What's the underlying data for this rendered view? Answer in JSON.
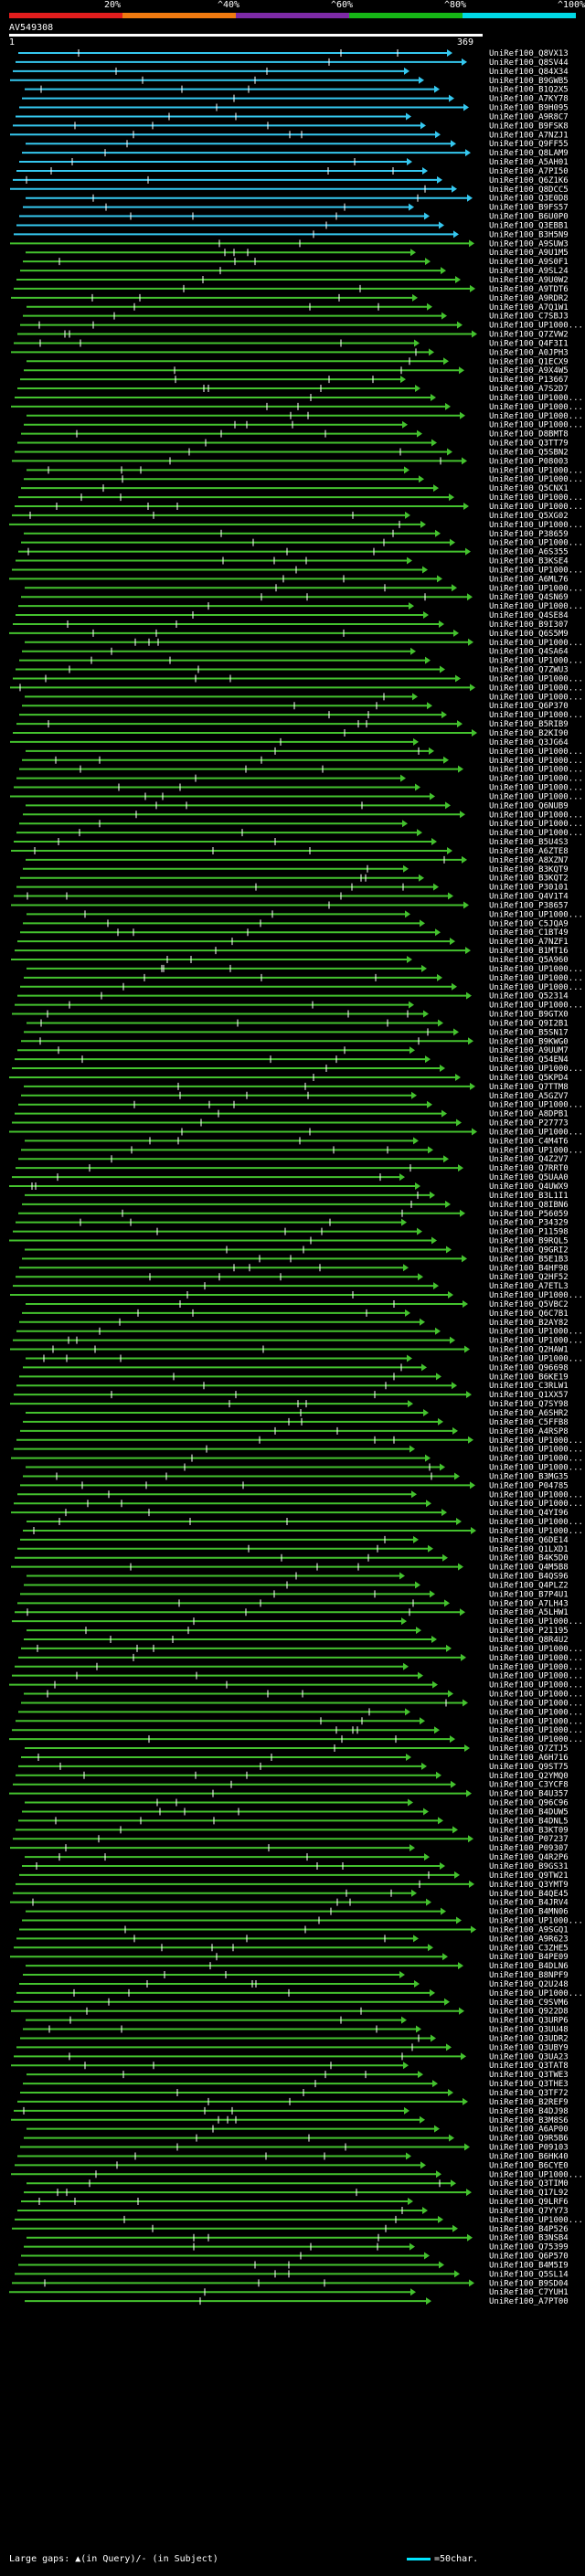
{
  "query": {
    "name": "AV549308",
    "start": "1",
    "end": "369"
  },
  "scale": [
    {
      "label": "20%",
      "color": "#e11d1d"
    },
    {
      "label": "^40%",
      "color": "#f07a10"
    },
    {
      "label": "^60%",
      "color": "#7d2aa6"
    },
    {
      "label": "^80%",
      "color": "#16b616"
    },
    {
      "label": "^100%",
      "color": "#00d9e6"
    }
  ],
  "hits": [
    "UniRef100_Q8VX13",
    "UniRef100_Q8SV44",
    "UniRef100_Q84X34",
    "UniRef100_B9GWB5",
    "UniRef100_B1Q2X5",
    "UniRef100_A7KY78",
    "UniRef100_B9H095",
    "UniRef100_A9R8C7",
    "UniRef100_B9FSK8",
    "UniRef100_A7NZJ1",
    "UniRef100_Q9FF55",
    "UniRef100_Q8LAM9",
    "UniRef100_A5AH01",
    "UniRef100_A7PI50",
    "UniRef100_Q6Z1K6",
    "UniRef100_Q8DCC5",
    "UniRef100_Q3E0D8",
    "UniRef100_B9FS57",
    "UniRef100_B6U0P0",
    "UniRef100_Q3EBB1",
    "UniRef100_B3H5N9",
    "UniRef100_A9SUW3",
    "UniRef100_A9U1M5",
    "UniRef100_A9S0F1",
    "UniRef100_A9SL24",
    "UniRef100_A9U0W2",
    "UniRef100_A9TDT6",
    "UniRef100_A9RDR2",
    "UniRef100_A7Q1W1",
    "UniRef100_C7SBJ3",
    "UniRef100_UP1000...",
    "UniRef100_Q7ZVW2",
    "UniRef100_Q4F3I1",
    "UniRef100_A0JPH3",
    "UniRef100_Q1ECX9",
    "UniRef100_A9X4W5",
    "UniRef100_P13667",
    "UniRef100_A7S2D7",
    "UniRef100_UP1000...",
    "UniRef100_UP1000...",
    "UniRef100_UP1000...",
    "UniRef100_UP1000...",
    "UniRef100_D8BMT8",
    "UniRef100_Q3TT79",
    "UniRef100_Q5SBN2",
    "UniRef100_P08003",
    "UniRef100_UP1000...",
    "UniRef100_UP1000...",
    "UniRef100_Q5CNX1",
    "UniRef100_UP1000...",
    "UniRef100_UP1000...",
    "UniRef100_Q5XG02",
    "UniRef100_UP1000...",
    "UniRef100_P38659",
    "UniRef100_UP1000...",
    "UniRef100_A6S355",
    "UniRef100_B3KSE4",
    "UniRef100_UP1000...",
    "UniRef100_A6ML76",
    "UniRef100_UP1000...",
    "UniRef100_Q4SN69",
    "UniRef100_UP1000...",
    "UniRef100_Q4SE84",
    "UniRef100_B9I307",
    "UniRef100_Q6S5M9",
    "UniRef100_UP1000...",
    "UniRef100_Q4SA64",
    "UniRef100_UP1000...",
    "UniRef100_Q7ZWU3",
    "UniRef100_UP1000...",
    "UniRef100_UP1000...",
    "UniRef100_UP1000...",
    "UniRef100_Q6P370",
    "UniRef100_UP1000...",
    "UniRef100_B5RIB9",
    "UniRef100_B2KI90",
    "UniRef100_Q3JG64",
    "UniRef100_UP1000...",
    "UniRef100_UP1000...",
    "UniRef100_UP1000...",
    "UniRef100_UP1000...",
    "UniRef100_UP1000...",
    "UniRef100_UP1000...",
    "UniRef100_Q6NUB9",
    "UniRef100_UP1000...",
    "UniRef100_UP1000...",
    "UniRef100_UP1000...",
    "UniRef100_B5U4S3",
    "UniRef100_A6ZTE8",
    "UniRef100_A8XZN7",
    "UniRef100_B3KQT9",
    "UniRef100_B3KQT2",
    "UniRef100_P30101",
    "UniRef100_Q4V1T4",
    "UniRef100_P38657",
    "UniRef100_UP1000...",
    "UniRef100_C5JQA9",
    "UniRef100_C1BT49",
    "UniRef100_A7NZF1",
    "UniRef100_B1MT16",
    "UniRef100_Q5A960",
    "UniRef100_UP1000...",
    "UniRef100_UP1000...",
    "UniRef100_UP1000...",
    "UniRef100_Q52314",
    "UniRef100_UP1000...",
    "UniRef100_B9GTX0",
    "UniRef100_Q9I2B1",
    "UniRef100_B5SN17",
    "UniRef100_B9KWG0",
    "UniRef100_A9UUM7",
    "UniRef100_Q54EN4",
    "UniRef100_UP1000...",
    "UniRef100_Q5KPD4",
    "UniRef100_Q7TTM8",
    "UniRef100_A5GZV7",
    "UniRef100_UP1000...",
    "UniRef100_A8DPB1",
    "UniRef100_P27773",
    "UniRef100_UP1000...",
    "UniRef100_C4M4T6",
    "UniRef100_UP1000...",
    "UniRef100_Q4Z2V7",
    "UniRef100_Q7RRT0",
    "UniRef100_Q5UAA0",
    "UniRef100_Q4UWX9",
    "UniRef100_B3L1I1",
    "UniRef100_Q8IBN6",
    "UniRef100_P56059",
    "UniRef100_P34329",
    "UniRef100_P11598",
    "UniRef100_B9RQL5",
    "UniRef100_Q9GRI2",
    "UniRef100_B5E1B3",
    "UniRef100_B4HF98",
    "UniRef100_Q2HF52",
    "UniRef100_A7ETL3",
    "UniRef100_UP1000...",
    "UniRef100_Q5VBC2",
    "UniRef100_Q6C7B1",
    "UniRef100_B2AY82",
    "UniRef100_UP1000...",
    "UniRef100_UP1000...",
    "UniRef100_Q2HAW1",
    "UniRef100_UP1000...",
    "UniRef100_Q96698",
    "UniRef100_B6KE19",
    "UniRef100_C3RLW1",
    "UniRef100_Q1XX57",
    "UniRef100_Q7SY98",
    "UniRef100_A6SHR2",
    "UniRef100_C5FFB8",
    "UniRef100_A4RSP8",
    "UniRef100_UP1000...",
    "UniRef100_UP1000...",
    "UniRef100_UP1000...",
    "UniRef100_UP1000...",
    "UniRef100_B3MG35",
    "UniRef100_P04785",
    "UniRef100_UP1000...",
    "UniRef100_UP1000...",
    "UniRef100_Q4YI96",
    "UniRef100_UP1000...",
    "UniRef100_UP1000...",
    "UniRef100_Q6DE14",
    "UniRef100_Q1LXD1",
    "UniRef100_B4K5D0",
    "UniRef100_Q4M5B8",
    "UniRef100_B4QS96",
    "UniRef100_Q4PLZ2",
    "UniRef100_B7P4U1",
    "UniRef100_A7LH43",
    "UniRef100_A5LHW1",
    "UniRef100_UP1000...",
    "UniRef100_P21195",
    "UniRef100_Q8R4U2",
    "UniRef100_UP1000...",
    "UniRef100_UP1000...",
    "UniRef100_UP1000...",
    "UniRef100_UP1000...",
    "UniRef100_UP1000...",
    "UniRef100_UP1000...",
    "UniRef100_UP1000...",
    "UniRef100_UP1000...",
    "UniRef100_UP1000...",
    "UniRef100_UP1000...",
    "UniRef100_UP1000...",
    "UniRef100_Q7ZTJ5",
    "UniRef100_A6H716",
    "UniRef100_Q9ST75",
    "UniRef100_Q2YMQ0",
    "UniRef100_C3YCF8",
    "UniRef100_B4U357",
    "UniRef100_Q96C96",
    "UniRef100_B4DUW5",
    "UniRef100_B4DNL5",
    "UniRef100_B3KT09",
    "UniRef100_P07237",
    "UniRef100_P09307",
    "UniRef100_Q4R2P6",
    "UniRef100_B9GS31",
    "UniRef100_Q9TW21",
    "UniRef100_Q3YMT9",
    "UniRef100_B4QE45",
    "UniRef100_B4JRV4",
    "UniRef100_B4MN06",
    "UniRef100_UP1000...",
    "UniRef100_A9SGQ1",
    "UniRef100_A9R623",
    "UniRef100_C3ZHE5",
    "UniRef100_B4PE09",
    "UniRef100_B4DLN6",
    "UniRef100_B8NPF9",
    "UniRef100_Q2U248",
    "UniRef100_UP1000...",
    "UniRef100_C9SVM6",
    "UniRef100_Q922D8",
    "UniRef100_Q3URP6",
    "UniRef100_Q3UU48",
    "UniRef100_Q3UDR2",
    "UniRef100_Q3UBY9",
    "UniRef100_Q3UA23",
    "UniRef100_Q3TAT8",
    "UniRef100_Q3TWE3",
    "UniRef100_Q3THE3",
    "UniRef100_Q3TF72",
    "UniRef100_B2REF9",
    "UniRef100_B4DJ98",
    "UniRef100_B3M8S6",
    "UniRef100_A6AP00",
    "UniRef100_Q9R5B6",
    "UniRef100_P09103",
    "UniRef100_B6HK40",
    "UniRef100_B6CYE0",
    "UniRef100_UP1000...",
    "UniRef100_Q3TIM0",
    "UniRef100_Q17L92",
    "UniRef100_Q9LRF6",
    "UniRef100_Q7YY73",
    "UniRef100_UP1000...",
    "UniRef100_B4P526",
    "UniRef100_B3NSB4",
    "UniRef100_Q75399",
    "UniRef100_Q6P570",
    "UniRef100_B4M5I9",
    "UniRef100_Q5SL14",
    "UniRef100_B9SD04",
    "UniRef100_C7YUH1",
    "UniRef100_A7PT00"
  ],
  "legend": {
    "large_gaps": "Large gaps: ▲(in Query)/- (in Subject)",
    "char_scale": "=50char."
  }
}
